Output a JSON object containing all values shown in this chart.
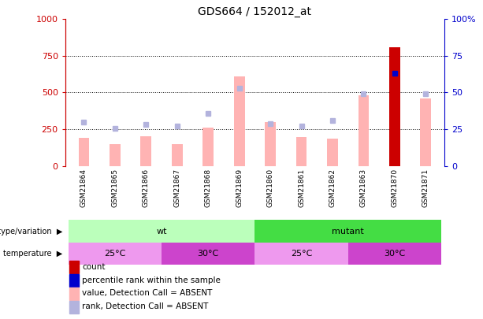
{
  "title": "GDS664 / 152012_at",
  "samples": [
    "GSM21864",
    "GSM21865",
    "GSM21866",
    "GSM21867",
    "GSM21868",
    "GSM21869",
    "GSM21860",
    "GSM21861",
    "GSM21862",
    "GSM21863",
    "GSM21870",
    "GSM21871"
  ],
  "bar_values": [
    190,
    150,
    200,
    150,
    260,
    610,
    300,
    195,
    185,
    480,
    810,
    460
  ],
  "bar_colors": [
    "#ffb3b3",
    "#ffb3b3",
    "#ffb3b3",
    "#ffb3b3",
    "#ffb3b3",
    "#ffb3b3",
    "#ffb3b3",
    "#ffb3b3",
    "#ffb3b3",
    "#ffb3b3",
    "#cc0000",
    "#ffb3b3"
  ],
  "rank_dots": [
    300,
    255,
    285,
    270,
    360,
    530,
    290,
    270,
    310,
    490,
    630,
    490
  ],
  "dot_color": "#b3b3dd",
  "special_dot_index": 10,
  "special_dot_color": "#0000cc",
  "ylim_left": [
    0,
    1000
  ],
  "ylim_right": [
    0,
    100
  ],
  "yticks_left": [
    0,
    250,
    500,
    750,
    1000
  ],
  "ytick_labels_left": [
    "0",
    "250",
    "500",
    "750",
    "1000"
  ],
  "yticks_right": [
    0,
    25,
    50,
    75,
    100
  ],
  "ytick_labels_right": [
    "0",
    "25",
    "50",
    "75",
    "100%"
  ],
  "left_axis_color": "#cc0000",
  "right_axis_color": "#0000cc",
  "genotype_groups": [
    {
      "label": "wt",
      "start": 0,
      "end": 5,
      "color": "#bbffbb"
    },
    {
      "label": "mutant",
      "start": 6,
      "end": 11,
      "color": "#44dd44"
    }
  ],
  "temperature_groups": [
    {
      "label": "25°C",
      "start": 0,
      "end": 2,
      "color": "#ee99ee"
    },
    {
      "label": "30°C",
      "start": 3,
      "end": 5,
      "color": "#cc44cc"
    },
    {
      "label": "25°C",
      "start": 6,
      "end": 8,
      "color": "#ee99ee"
    },
    {
      "label": "30°C",
      "start": 9,
      "end": 11,
      "color": "#cc44cc"
    }
  ],
  "genotype_label": "genotype/variation",
  "temperature_label": "temperature",
  "legend_items": [
    {
      "color": "#cc0000",
      "label": "count"
    },
    {
      "color": "#0000cc",
      "label": "percentile rank within the sample"
    },
    {
      "color": "#ffb3b3",
      "label": "value, Detection Call = ABSENT"
    },
    {
      "color": "#b3b3dd",
      "label": "rank, Detection Call = ABSENT"
    }
  ],
  "bar_width": 0.35
}
